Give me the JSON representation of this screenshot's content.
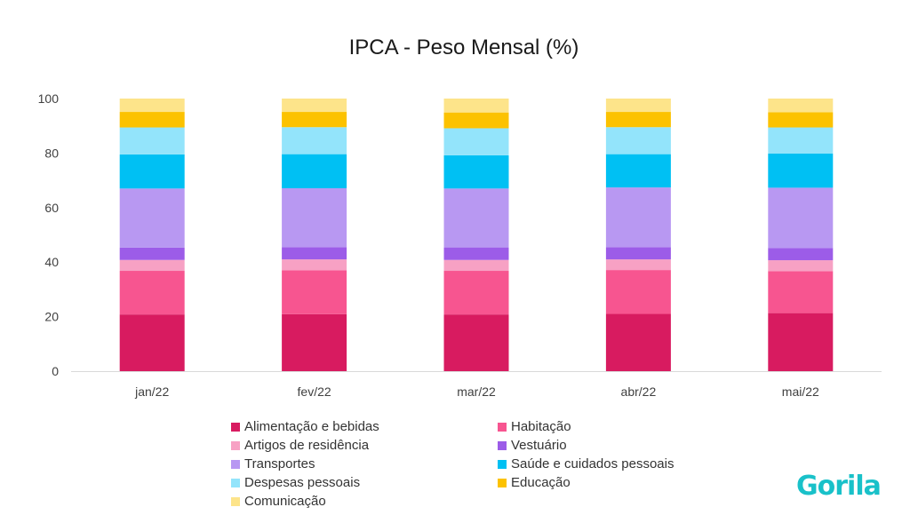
{
  "logo": {
    "text": "Gorila",
    "color": "#19c1c9"
  },
  "chart_data": {
    "type": "bar",
    "stacked": true,
    "title": "IPCA - Peso Mensal (%)",
    "xlabel": "",
    "ylabel": "",
    "ylim": [
      0,
      100
    ],
    "yticks": [
      0,
      20,
      40,
      60,
      80,
      100
    ],
    "grid": false,
    "legend_position": "bottom",
    "categories": [
      "jan/22",
      "fev/22",
      "mar/22",
      "abr/22",
      "mai/22"
    ],
    "series": [
      {
        "name": "Alimentação e bebidas",
        "color": "#d81b60",
        "values": [
          20.8,
          20.9,
          20.8,
          21.0,
          21.3
        ]
      },
      {
        "name": "Habitação",
        "color": "#f75590",
        "values": [
          16.0,
          16.1,
          16.0,
          16.1,
          15.4
        ]
      },
      {
        "name": "Artigos de residência",
        "color": "#f7a1c4",
        "values": [
          4.0,
          4.0,
          4.0,
          3.9,
          4.0
        ]
      },
      {
        "name": "Vestuário",
        "color": "#9c5ce8",
        "values": [
          4.5,
          4.5,
          4.6,
          4.5,
          4.5
        ]
      },
      {
        "name": "Transportes",
        "color": "#b898f2",
        "values": [
          21.7,
          21.6,
          21.6,
          21.9,
          22.1
        ]
      },
      {
        "name": "Saúde e cuidados pessoais",
        "color": "#00c0f3",
        "values": [
          12.5,
          12.5,
          12.2,
          12.2,
          12.5
        ]
      },
      {
        "name": "Despesas pessoais",
        "color": "#93e4fb",
        "values": [
          9.9,
          9.9,
          9.9,
          9.9,
          9.6
        ]
      },
      {
        "name": "Educação",
        "color": "#fcc200",
        "values": [
          5.7,
          5.6,
          5.8,
          5.6,
          5.6
        ]
      },
      {
        "name": "Comunicação",
        "color": "#fde48a",
        "values": [
          4.9,
          4.9,
          5.1,
          4.9,
          5.0
        ]
      }
    ]
  }
}
